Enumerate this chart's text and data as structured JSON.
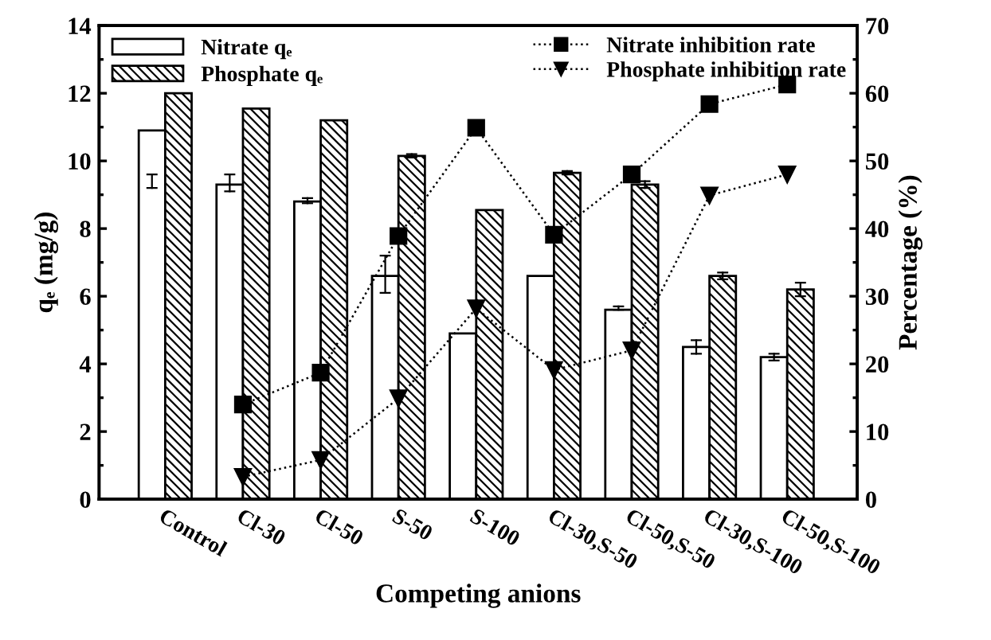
{
  "chart_data": {
    "type": "bar",
    "xlabel": "Competing anions",
    "ylabel": "qₑ (mg/g)",
    "y2label": "Percentage (%)",
    "categories": [
      "Control",
      "Cl-30",
      "Cl-50",
      "S-50",
      "S-100",
      "Cl-30,S-50",
      "Cl-50,S-50",
      "Cl-30,S-100",
      "Cl-50,S-100"
    ],
    "series": [
      {
        "name": "Nitrate qₑ",
        "color": "#ffffff",
        "values": [
          10.9,
          9.3,
          8.8,
          6.6,
          4.9,
          6.6,
          5.6,
          4.5,
          4.2
        ],
        "errors": [
          [
            9.2,
            9.6
          ],
          [
            9.1,
            9.6
          ],
          [
            8.75,
            8.9
          ],
          [
            6.1,
            7.2
          ],
          null,
          null,
          [
            5.6,
            5.7
          ],
          [
            4.3,
            4.7
          ],
          [
            4.1,
            4.3
          ]
        ]
      },
      {
        "name": "Phosphate qₑ",
        "color": "#000000",
        "values": [
          12.0,
          11.55,
          11.2,
          10.15,
          8.55,
          9.65,
          9.3,
          6.6,
          6.2
        ],
        "errors": [
          null,
          null,
          null,
          [
            10.1,
            10.2
          ],
          null,
          [
            9.6,
            9.7
          ],
          [
            9.2,
            9.4
          ],
          [
            6.5,
            6.7
          ],
          [
            6.0,
            6.4
          ]
        ]
      },
      {
        "name": "Nitrate inhibition rate",
        "type": "line",
        "axis": "y2",
        "color": "#000000",
        "marker": "square",
        "line_style": "dotted",
        "values": [
          null,
          14,
          18.7,
          38.9,
          54.9,
          39.1,
          48,
          58.4,
          61.3
        ]
      },
      {
        "name": "Phosphate inhibition rate",
        "type": "line",
        "axis": "y2",
        "color": "#000000",
        "marker": "triangle",
        "line_style": "dotted",
        "values": [
          null,
          3.3,
          5.8,
          14.9,
          28.2,
          19.1,
          22,
          44.9,
          48
        ]
      }
    ],
    "ylim": [
      0,
      14
    ],
    "yticks": [
      0,
      2,
      4,
      6,
      8,
      10,
      12,
      14
    ],
    "y2lim": [
      0,
      70
    ],
    "y2ticks": [
      0,
      10,
      20,
      30,
      40,
      50,
      60,
      70
    ],
    "grid": false,
    "legend": "top"
  }
}
